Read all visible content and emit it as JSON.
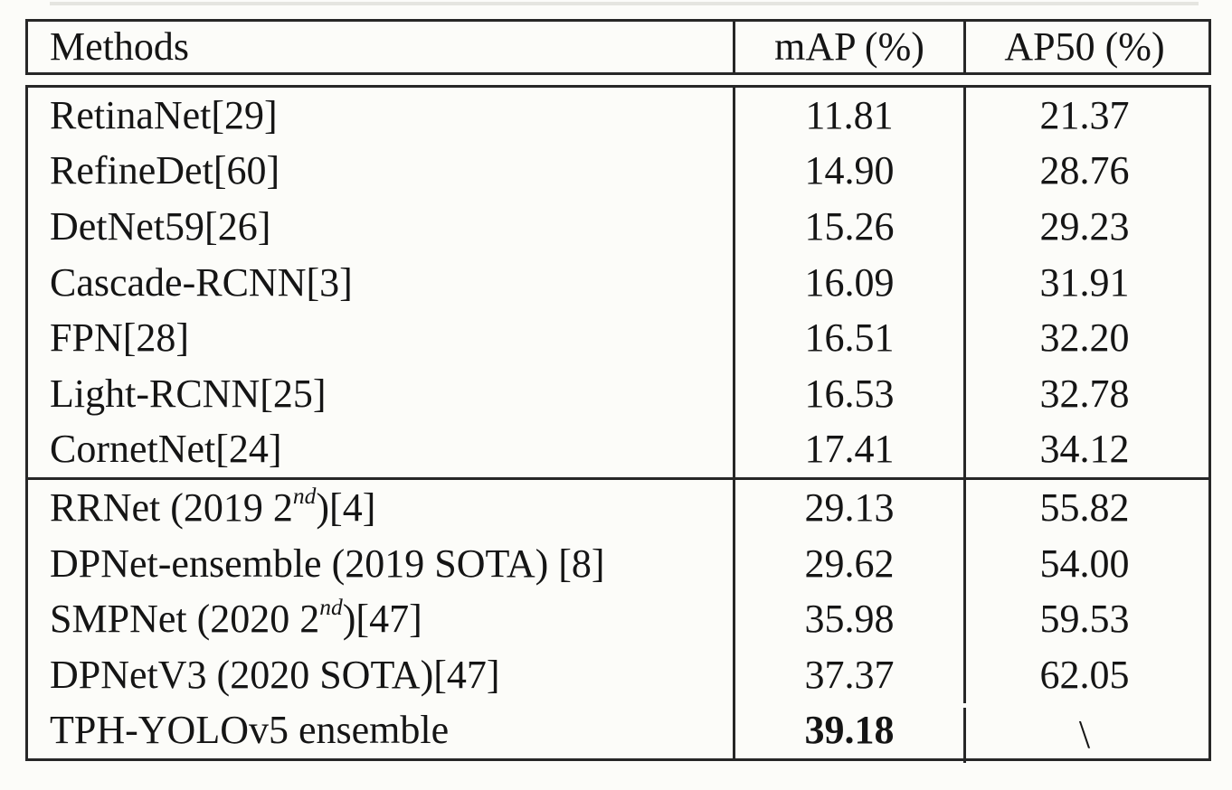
{
  "table": {
    "columns": [
      {
        "label": "Methods"
      },
      {
        "label": "mAP (%)"
      },
      {
        "label": "AP50 (%)"
      }
    ],
    "groups": [
      {
        "rows": [
          {
            "method": [
              {
                "t": "RetinaNet[29]"
              }
            ],
            "map": "11.81",
            "ap50": "21.37"
          },
          {
            "method": [
              {
                "t": "RefineDet[60]"
              }
            ],
            "map": "14.90",
            "ap50": "28.76"
          },
          {
            "method": [
              {
                "t": "DetNet59[26]"
              }
            ],
            "map": "15.26",
            "ap50": "29.23"
          },
          {
            "method": [
              {
                "t": "Cascade-RCNN[3]"
              }
            ],
            "map": "16.09",
            "ap50": "31.91"
          },
          {
            "method": [
              {
                "t": "FPN[28]"
              }
            ],
            "map": "16.51",
            "ap50": "32.20"
          },
          {
            "method": [
              {
                "t": "Light-RCNN[25]"
              }
            ],
            "map": "16.53",
            "ap50": "32.78"
          },
          {
            "method": [
              {
                "t": "CornetNet[24]"
              }
            ],
            "map": "17.41",
            "ap50": "34.12"
          }
        ]
      },
      {
        "rows": [
          {
            "method": [
              {
                "t": "RRNet (2019 2"
              },
              {
                "t": "nd",
                "sup": true
              },
              {
                "t": ")[4]"
              }
            ],
            "map": "29.13",
            "ap50": "55.82"
          },
          {
            "method": [
              {
                "t": "DPNet-ensemble (2019 SOTA) [8]"
              }
            ],
            "map": "29.62",
            "ap50": "54.00"
          },
          {
            "method": [
              {
                "t": "SMPNet (2020 2"
              },
              {
                "t": "nd",
                "sup": true
              },
              {
                "t": ")[47]"
              }
            ],
            "map": "35.98",
            "ap50": "59.53"
          },
          {
            "method": [
              {
                "t": "DPNetV3 (2020 SOTA)[47]"
              }
            ],
            "map": "37.37",
            "ap50": "62.05"
          },
          {
            "method": [
              {
                "t": "TPH-YOLOv5 ensemble"
              }
            ],
            "map": "39.18",
            "map_bold": true,
            "ap50": "\\",
            "ap50_diag": true
          }
        ]
      }
    ],
    "colors": {
      "border": "#272727",
      "text": "#151515",
      "background": "#fcfcf9"
    }
  }
}
